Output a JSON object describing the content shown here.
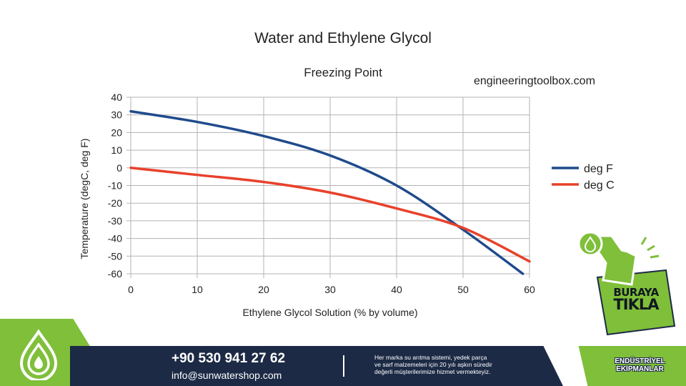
{
  "chart_data": {
    "type": "line",
    "title": "Water and Ethylene Glycol",
    "subtitle": "Freezing Point",
    "annotation": "engineeringtoolbox.com",
    "xlabel": "Ethylene Glycol Solution (% by volume)",
    "ylabel": "Temperature (degC, deg F)",
    "xlim": [
      0,
      60
    ],
    "ylim": [
      -60,
      40
    ],
    "xticks": [
      "0",
      "10",
      "20",
      "30",
      "40",
      "50",
      "60"
    ],
    "yticks": [
      "40",
      "30",
      "20",
      "10",
      "0",
      "-10",
      "-20",
      "-30",
      "-40",
      "-50",
      "-60"
    ],
    "grid": true,
    "legend_position": "right",
    "series": [
      {
        "name": "deg F",
        "color": "#1f4b8c",
        "x": [
          0,
          10,
          20,
          30,
          40,
          50,
          59
        ],
        "y": [
          32,
          26,
          18,
          7,
          -10,
          -35,
          -60
        ]
      },
      {
        "name": "deg C",
        "color": "#e8412b",
        "x": [
          0,
          10,
          20,
          30,
          40,
          50,
          60
        ],
        "y": [
          0,
          -4,
          -8,
          -14,
          -23,
          -34,
          -53
        ]
      }
    ]
  },
  "banner": {
    "phone": "+90 530 941 27 62",
    "email": "info@sunwatershop.com",
    "blurb_lines": [
      "Her marka su arıtma sistemi, yedek parça",
      "ve sarf malzemeleri için 20 yılı aşkın süredir",
      "değerli müşterilerimize hizmet vermekteyiz."
    ],
    "category_line1": "ENDÜSTRİYEL",
    "category_line2": "EKİPMANLAR"
  },
  "cta": {
    "line1": "BURAYA",
    "line2": "TIKLA"
  },
  "colors": {
    "brand_green": "#7fbf3a",
    "brand_navy": "#1c2a45"
  },
  "icons": [
    "water-drop-logo-icon",
    "hand-pointer-icon"
  ]
}
